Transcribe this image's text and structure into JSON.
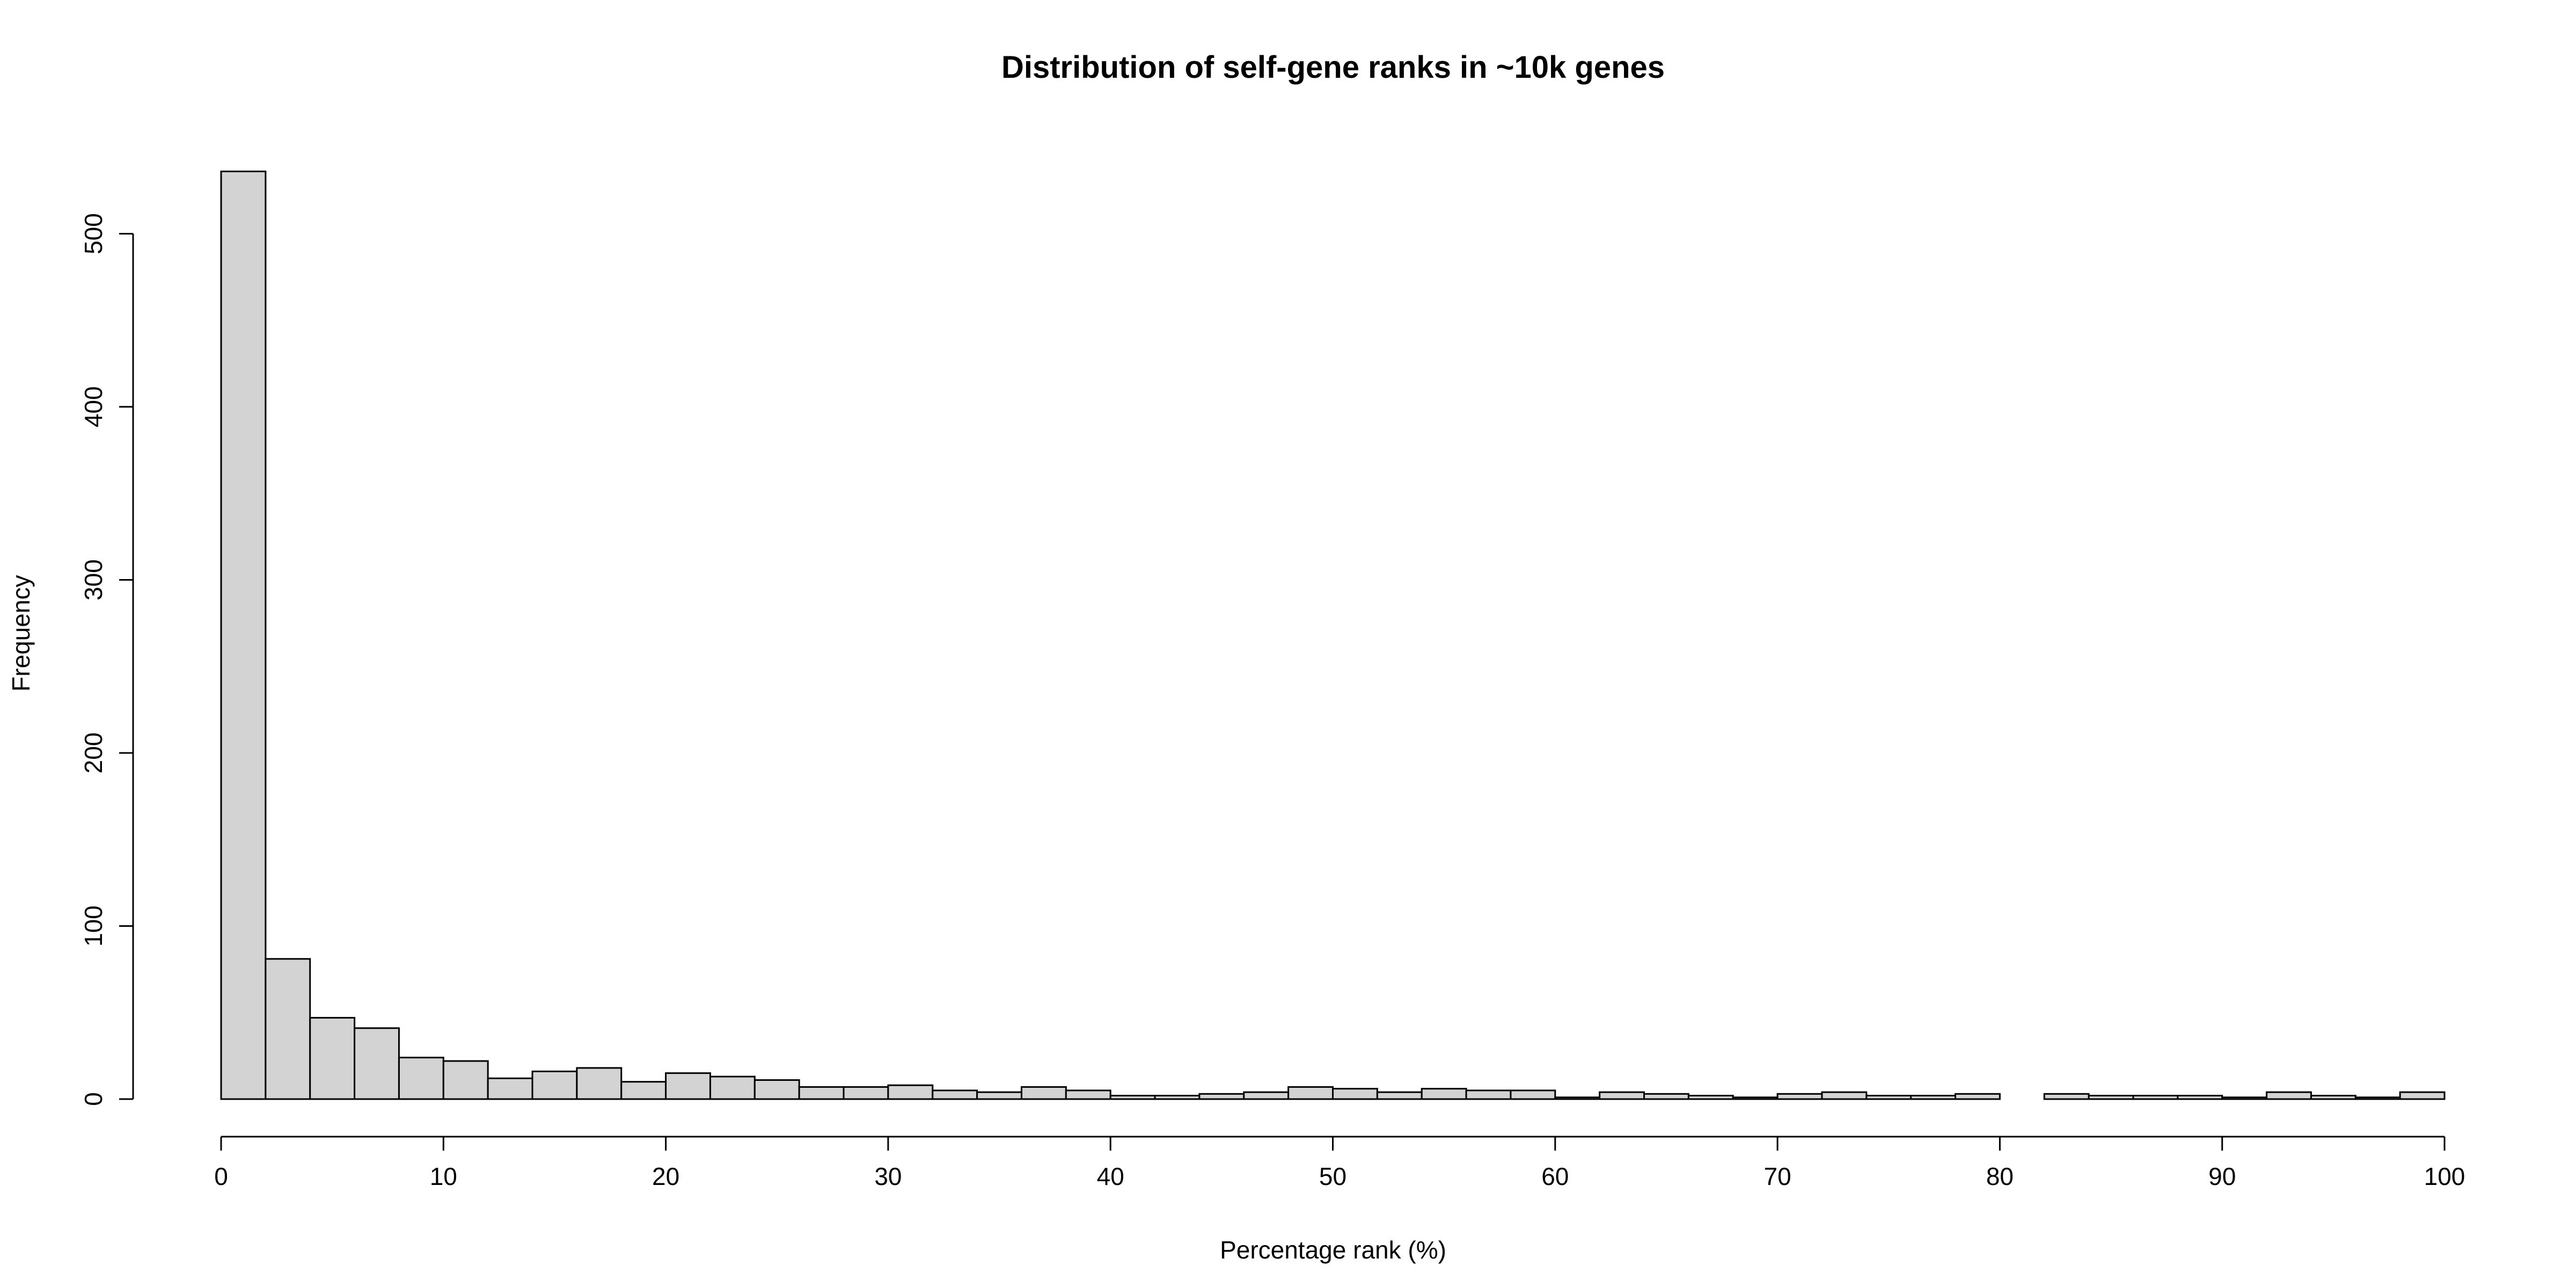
{
  "chart_data": {
    "type": "bar",
    "title": "Distribution of self-gene ranks in ~10k genes",
    "xlabel": "Percentage rank (%)",
    "ylabel": "Frequency",
    "xlim": [
      0,
      100
    ],
    "ylim": [
      0,
      540
    ],
    "bin_width": 2,
    "bin_starts": [
      0,
      2,
      4,
      6,
      8,
      10,
      12,
      14,
      16,
      18,
      20,
      22,
      24,
      26,
      28,
      30,
      32,
      34,
      36,
      38,
      40,
      42,
      44,
      46,
      48,
      50,
      52,
      54,
      56,
      58,
      60,
      62,
      64,
      66,
      68,
      70,
      72,
      74,
      76,
      78,
      80,
      82,
      84,
      86,
      88,
      90,
      92,
      94,
      96,
      98
    ],
    "values": [
      536,
      81,
      47,
      41,
      24,
      22,
      12,
      16,
      18,
      10,
      15,
      13,
      11,
      7,
      7,
      8,
      5,
      4,
      7,
      5,
      2,
      2,
      3,
      4,
      7,
      6,
      4,
      6,
      5,
      5,
      1,
      4,
      3,
      2,
      1,
      3,
      4,
      2,
      2,
      3,
      0,
      3,
      2,
      2,
      2,
      1,
      4,
      2,
      1,
      4
    ],
    "x_ticks": [
      "0",
      "10",
      "20",
      "30",
      "40",
      "50",
      "60",
      "70",
      "80",
      "90",
      "100"
    ],
    "y_ticks": [
      "0",
      "100",
      "200",
      "300",
      "400",
      "500"
    ],
    "grid": false,
    "legend": "none"
  }
}
